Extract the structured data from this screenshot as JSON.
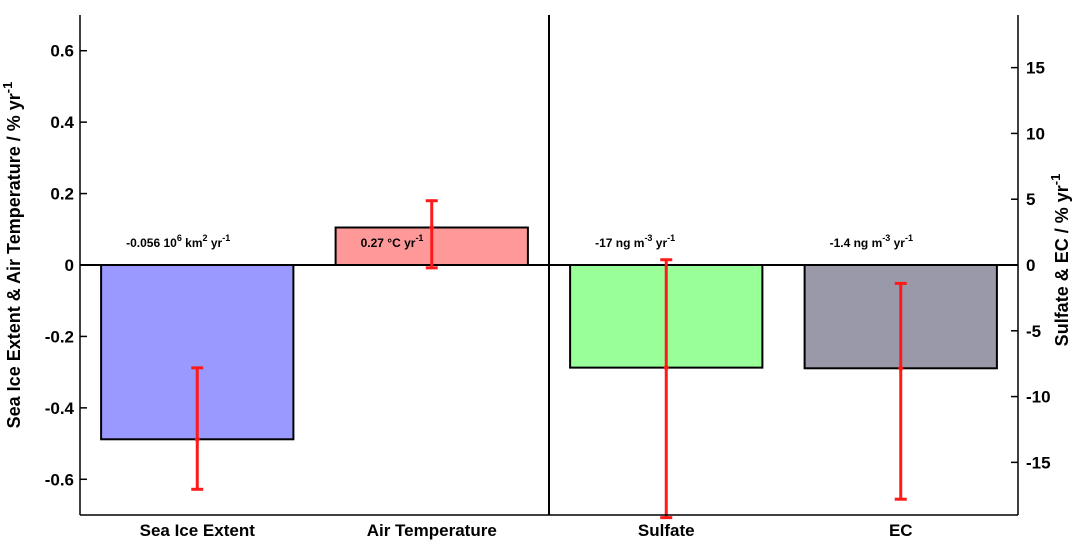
{
  "chart_data": {
    "type": "bar",
    "categories": [
      "Sea Ice Extent",
      "Air Temperature",
      "Sulfate",
      "EC"
    ],
    "values_percent_per_year": [
      -0.488,
      0.105,
      -7.8,
      -7.85
    ],
    "error_bars": [
      {
        "low": -0.628,
        "high": -0.288
      },
      {
        "low": -0.008,
        "high": 0.18
      },
      {
        "low": -19.2,
        "high": 0.4
      },
      {
        "low": -17.8,
        "high": -1.4
      }
    ],
    "axis_assignment": [
      "left",
      "left",
      "right",
      "right"
    ],
    "annotations": [
      {
        "base": "-0.056 10",
        "sup1": "6",
        "mid": " km",
        "sup2": "2",
        "tail": " yr",
        "sup3": "-1"
      },
      {
        "base": "0.27 °C yr",
        "sup1": "-1",
        "mid": "",
        "sup2": "",
        "tail": "",
        "sup3": ""
      },
      {
        "base": "-17 ng m",
        "sup1": "-3",
        "mid": " yr",
        "sup2": "-1",
        "tail": "",
        "sup3": ""
      },
      {
        "base": "-1.4 ng m",
        "sup1": "-3",
        "mid": " yr",
        "sup2": "-1",
        "tail": "",
        "sup3": ""
      }
    ],
    "colors": [
      "#9999ff",
      "#ff9999",
      "#99ff99",
      "#9999aa"
    ],
    "error_color": "#ff1a1a",
    "left_axis": {
      "label_main": "Sea Ice Extent & Air Temperature / % yr",
      "label_sup": "-1",
      "ylim": [
        -0.7,
        0.7
      ],
      "ticks": [
        -0.6,
        -0.4,
        -0.2,
        0,
        0.2,
        0.4,
        0.6
      ],
      "tick_labels": [
        "-0.6",
        "-0.4",
        "-0.2",
        "0",
        "0.2",
        "0.4",
        "0.6"
      ]
    },
    "right_axis": {
      "label_main": "Sulfate & EC / % yr",
      "label_sup": "-1",
      "ylim": [
        -19.0,
        19.0
      ],
      "ticks": [
        -15,
        -10,
        -5,
        0,
        5,
        10,
        15
      ],
      "tick_labels": [
        "-15",
        "-10",
        "-5",
        "0",
        "5",
        "10",
        "15"
      ]
    },
    "grid": false,
    "legend": "none"
  }
}
